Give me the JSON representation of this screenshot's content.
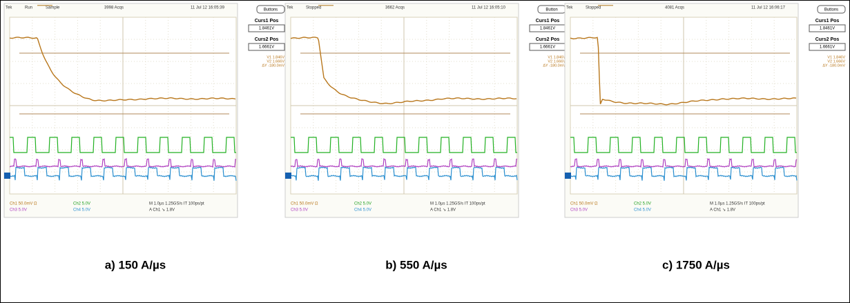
{
  "panels": [
    {
      "header": {
        "brand": "Tek",
        "state": "Run",
        "mode": "Sample",
        "acqs": "3998 Acqs",
        "timestamp": "11 Jul 12 16:05:39"
      },
      "side": {
        "button": "Buttons",
        "curs1_label": "Curs1 Pos",
        "curs1_value": "1.8461V",
        "curs2_label": "Curs2 Pos",
        "curs2_value": "1.6661V",
        "readout": [
          "V1 1.846V",
          "V2 1.666V",
          "ΔY -180.0mV"
        ]
      },
      "footer": [
        "Ch1 50.0mV Ω",
        "Ch2 5.0V",
        "M 1.0µs 1.25GS/s IT 100ps/pt",
        "Ch3 5.0V",
        "Ch4 5.0V",
        "A Ch1 ↘ 1.8V"
      ],
      "caption": "a) 150 A/µs"
    },
    {
      "header": {
        "brand": "Tek",
        "state": "Stopped",
        "acqs": "3662 Acqs",
        "timestamp": "11 Jul 12 16:05:10"
      },
      "side": {
        "button": "Button",
        "curs1_label": "Curs1 Pos",
        "curs1_value": "1.8461V",
        "curs2_label": "Curs2 Pos",
        "curs2_value": "1.6661V",
        "readout": [
          "V1 1.846V",
          "V2 1.666V",
          "ΔY -180.0mV"
        ]
      },
      "footer": [
        "Ch1 50.0mV Ω",
        "Ch2 5.0V",
        "M 1.0µs 1.25GS/s IT 100ps/pt",
        "Ch3 5.0V",
        "Ch4 5.0V",
        "A Ch1 ↘ 1.8V"
      ],
      "caption": "b) 550 A/µs"
    },
    {
      "header": {
        "brand": "Tek",
        "state": "Stopped",
        "acqs": "4081 Acqs",
        "timestamp": "11 Jul 12 16:06:17"
      },
      "side": {
        "button": "Buttons",
        "curs1_label": "Curs1 Pos",
        "curs1_value": "1.8461V",
        "curs2_label": "Curs2 Pos",
        "curs2_value": "1.6661V",
        "readout": [
          "V1 1.846V",
          "V2 1.666V",
          "ΔY -180.0mV"
        ]
      },
      "footer": [
        "Ch1 50.0mV Ω",
        "Ch2 5.0V",
        "M 1.0µs 1.25GS/s IT 100ps/pt",
        "Ch3 5.0V",
        "Ch4 5.0V",
        "A Ch1 ↘ 1.8V"
      ],
      "caption": "c) 1750 A/µs"
    }
  ]
}
